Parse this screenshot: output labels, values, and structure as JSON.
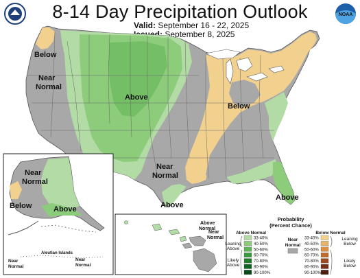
{
  "header": {
    "title": "8-14 Day Precipitation Outlook",
    "valid_label": "Valid:",
    "valid_dates": "September 16 - 22, 2025",
    "issued_label": "Issued:",
    "issued_date": "September 8, 2025"
  },
  "logos": {
    "left": "doc-seal-icon",
    "right": "noaa-logo-icon",
    "right_text": "NOAA"
  },
  "colors": {
    "above_33_40": "#b3dba5",
    "above_40_50": "#8ccc7b",
    "above_50_60": "#5fb35a",
    "above_60_70": "#3a9a3e",
    "above_70_80": "#1f7d2a",
    "above_80_90": "#0f6320",
    "above_90_100": "#074a17",
    "below_33_40": "#f2d08e",
    "below_40_50": "#e8b568",
    "below_50_60": "#d98f44",
    "below_60_70": "#c06a2d",
    "below_70_80": "#9c4a1f",
    "below_80_90": "#743116",
    "below_90_100": "#4a1d0d",
    "near_normal": "#a8a8a8",
    "land_outline": "#555555",
    "water": "#ffffff"
  },
  "map_labels": {
    "below_west": "Below",
    "near_normal_west_1": "Near",
    "near_normal_west_2": "Normal",
    "above_rockies": "Above",
    "below_east": "Below",
    "near_normal_south_1": "Near",
    "near_normal_south_2": "Normal",
    "above_texas": "Above",
    "above_florida": "Above"
  },
  "alaska_labels": {
    "near_normal_1": "Near",
    "near_normal_2": "Normal",
    "below": "Below",
    "above": "Above",
    "aleutian": "Aleutian Islands",
    "aleutian_near_1": "Near",
    "aleutian_near_2": "Normal",
    "aleutian_near2_1": "Near",
    "aleutian_near2_2": "Normal"
  },
  "hawaii_labels": {
    "above_normal_1": "Above",
    "above_normal_2": "Normal",
    "near_normal_1": "Near",
    "near_normal_2": "Normal"
  },
  "legend": {
    "title_1": "Probability",
    "title_2": "(Percent Chance)",
    "above_header": "Above Normal",
    "below_header": "Below Normal",
    "near_header_1": "Near",
    "near_header_2": "Normal",
    "leaning_above_1": "Leaning",
    "leaning_above_2": "Above",
    "likely_above_1": "Likely",
    "likely_above_2": "Above",
    "leaning_below_1": "Leaning",
    "leaning_below_2": "Below",
    "likely_below_1": "Likely",
    "likely_below_2": "Below",
    "ranges": [
      "33-40%",
      "40-50%",
      "50-60%",
      "60-70%",
      "70-80%",
      "80-90%",
      "90-100%"
    ]
  }
}
